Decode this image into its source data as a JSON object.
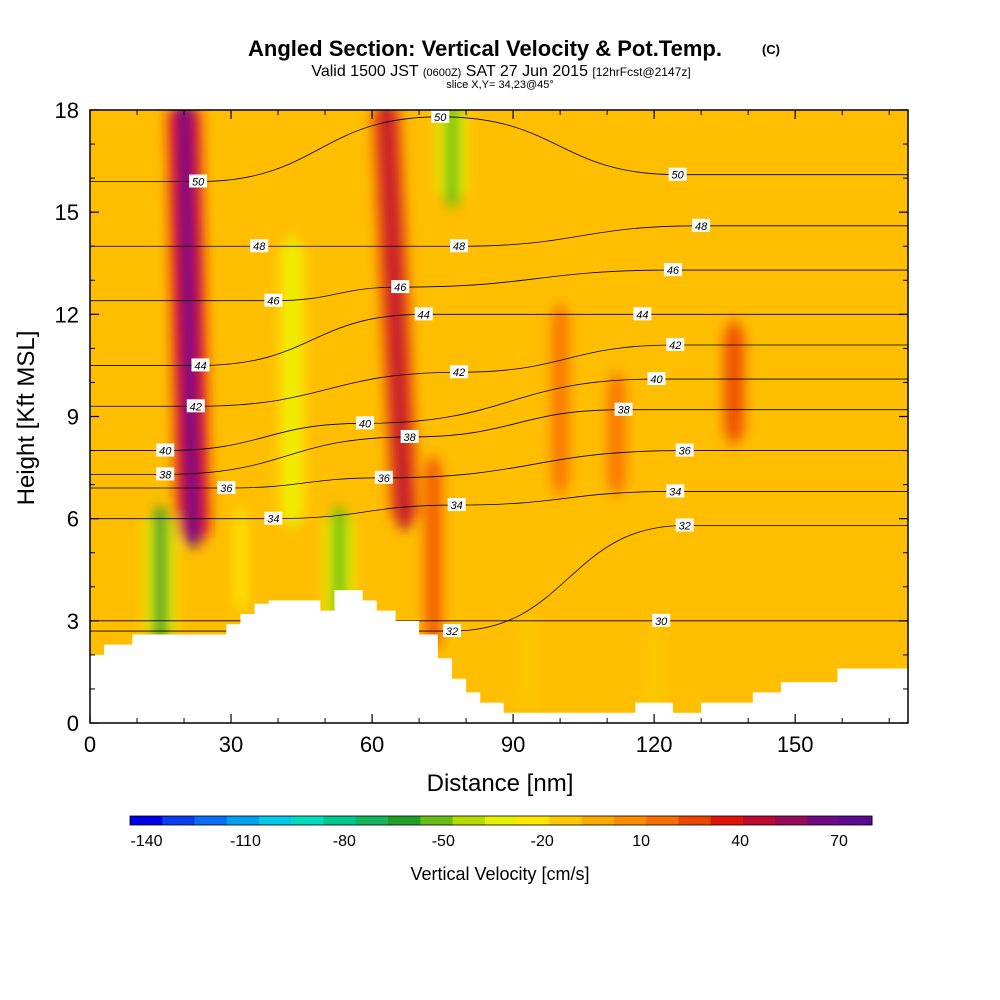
{
  "chart_data": {
    "type": "heatmap",
    "title": "Angled Section: Vertical Velocity & Pot.Temp.",
    "title_suffix": "(C)",
    "subtitle": {
      "valid_prefix": "Valid 1500 JST",
      "valid_zulu": "(0600Z)",
      "valid_date": "SAT 27 Jun 2015",
      "forecast": "[12hrFcst@2147z]"
    },
    "slice_text": "slice X,Y= 34,23@45°",
    "xlabel": "Distance [nm]",
    "ylabel": "Height [Kft MSL]",
    "xlim": [
      0,
      174
    ],
    "ylim": [
      0,
      18
    ],
    "x_ticks": [
      0,
      30,
      60,
      90,
      120,
      150
    ],
    "y_ticks": [
      0,
      3,
      6,
      9,
      12,
      15,
      18
    ],
    "colorbar": {
      "label": "Vertical Velocity [cm/s]",
      "min": -145,
      "max": 80,
      "step": 10,
      "tick_labels": [
        "-140",
        "-110",
        "-80",
        "-50",
        "-20",
        "10",
        "40",
        "70"
      ],
      "colors": [
        "#0000e6",
        "#0a3cf0",
        "#0a6ef5",
        "#00a0f0",
        "#00c8e6",
        "#00dcbe",
        "#00c88c",
        "#14b45a",
        "#1ea028",
        "#64be14",
        "#b4dc00",
        "#e6f000",
        "#ffe600",
        "#ffc800",
        "#ffaa00",
        "#ff8c00",
        "#f56e00",
        "#eb4600",
        "#e1140a",
        "#be0a32",
        "#960a5a",
        "#6e0a82",
        "#5a0a8c"
      ]
    },
    "vertical_velocity_features": [
      {
        "x": 22,
        "x_top": 20,
        "y_from": 5.5,
        "y_to": 18,
        "value": 70
      },
      {
        "x": 67,
        "x_top": 63,
        "y_from": 6,
        "y_to": 18,
        "value": 50
      },
      {
        "x": 73,
        "y_from": 2.5,
        "y_to": 7.5,
        "value": 25
      },
      {
        "x": 53,
        "y_from": 3,
        "y_to": 6,
        "value": -55
      },
      {
        "x": 15,
        "y_from": 2.6,
        "y_to": 6,
        "value": -60
      },
      {
        "x": 43,
        "y_from": 6,
        "y_to": 14,
        "value": -35
      },
      {
        "x": 77,
        "y_from": 15.5,
        "y_to": 18,
        "value": -55
      },
      {
        "x": 100,
        "y_from": 7,
        "y_to": 12,
        "value": 15
      },
      {
        "x": 137,
        "y_from": 8.5,
        "y_to": 11.5,
        "value": 30
      },
      {
        "x": 112,
        "y_from": 7,
        "y_to": 10,
        "value": 20
      },
      {
        "x": 93,
        "y_from": 0.5,
        "y_to": 3,
        "value": -15
      },
      {
        "x": 120,
        "y_from": 0.5,
        "y_to": 2.5,
        "value": -15
      },
      {
        "x": 32,
        "y_from": 3.6,
        "y_to": 6,
        "value": -20
      }
    ],
    "contour_labels": [
      {
        "text": "50",
        "x": 23,
        "y": 15.9
      },
      {
        "text": "48",
        "x": 36,
        "y": 14
      },
      {
        "text": "46",
        "x": 39,
        "y": 12.4
      },
      {
        "text": "44",
        "x": 23.5,
        "y": 10.5
      },
      {
        "text": "42",
        "x": 22.5,
        "y": 9.3
      },
      {
        "text": "40",
        "x": 16,
        "y": 8
      },
      {
        "text": "38",
        "x": 16,
        "y": 7.3
      },
      {
        "text": "36",
        "x": 29,
        "y": 6.9
      },
      {
        "text": "34",
        "x": 39,
        "y": 6
      },
      {
        "text": "50",
        "x": 74.5,
        "y": 17.8
      },
      {
        "text": "48",
        "x": 78.5,
        "y": 14
      },
      {
        "text": "46",
        "x": 66,
        "y": 12.8
      },
      {
        "text": "44",
        "x": 71,
        "y": 12
      },
      {
        "text": "42",
        "x": 78.5,
        "y": 10.3
      },
      {
        "text": "40",
        "x": 58.5,
        "y": 8.8
      },
      {
        "text": "38",
        "x": 68,
        "y": 8.4
      },
      {
        "text": "36",
        "x": 62.5,
        "y": 7.2
      },
      {
        "text": "34",
        "x": 78,
        "y": 6.4
      },
      {
        "text": "32",
        "x": 77,
        "y": 2.7
      },
      {
        "text": "50",
        "x": 125,
        "y": 16.1
      },
      {
        "text": "48",
        "x": 130,
        "y": 14.6
      },
      {
        "text": "46",
        "x": 124,
        "y": 13.3
      },
      {
        "text": "44",
        "x": 117.5,
        "y": 12
      },
      {
        "text": "42",
        "x": 124.5,
        "y": 11.1
      },
      {
        "text": "40",
        "x": 120.5,
        "y": 10.1
      },
      {
        "text": "38",
        "x": 113.5,
        "y": 9.2
      },
      {
        "text": "36",
        "x": 126.5,
        "y": 8
      },
      {
        "text": "34",
        "x": 124.5,
        "y": 6.8
      },
      {
        "text": "32",
        "x": 126.5,
        "y": 5.8
      },
      {
        "text": "30",
        "x": 121.5,
        "y": 3
      }
    ],
    "terrain_profile": [
      [
        0,
        2
      ],
      [
        3,
        2
      ],
      [
        3,
        2.3
      ],
      [
        9,
        2.3
      ],
      [
        9,
        2.6
      ],
      [
        29,
        2.6
      ],
      [
        29,
        2.9
      ],
      [
        32,
        2.9
      ],
      [
        32,
        3.2
      ],
      [
        35,
        3.2
      ],
      [
        35,
        3.5
      ],
      [
        38,
        3.5
      ],
      [
        38,
        3.6
      ],
      [
        49,
        3.6
      ],
      [
        49,
        3.3
      ],
      [
        52,
        3.3
      ],
      [
        52,
        3.9
      ],
      [
        58,
        3.9
      ],
      [
        58,
        3.6
      ],
      [
        61,
        3.6
      ],
      [
        61,
        3.3
      ],
      [
        65,
        3.3
      ],
      [
        65,
        3
      ],
      [
        70,
        3
      ],
      [
        70,
        2.6
      ],
      [
        74,
        2.6
      ],
      [
        74,
        1.9
      ],
      [
        77,
        1.9
      ],
      [
        77,
        1.3
      ],
      [
        80,
        1.3
      ],
      [
        80,
        0.9
      ],
      [
        83,
        0.9
      ],
      [
        83,
        0.6
      ],
      [
        88,
        0.6
      ],
      [
        88,
        0.3
      ],
      [
        116,
        0.3
      ],
      [
        116,
        0.6
      ],
      [
        124,
        0.6
      ],
      [
        124,
        0.3
      ],
      [
        130,
        0.3
      ],
      [
        130,
        0.6
      ],
      [
        141,
        0.6
      ],
      [
        141,
        0.9
      ],
      [
        147,
        0.9
      ],
      [
        147,
        1.2
      ],
      [
        159,
        1.2
      ],
      [
        159,
        1.6
      ],
      [
        174,
        1.6
      ]
    ],
    "grid": false,
    "legend_placement": "bottom"
  }
}
